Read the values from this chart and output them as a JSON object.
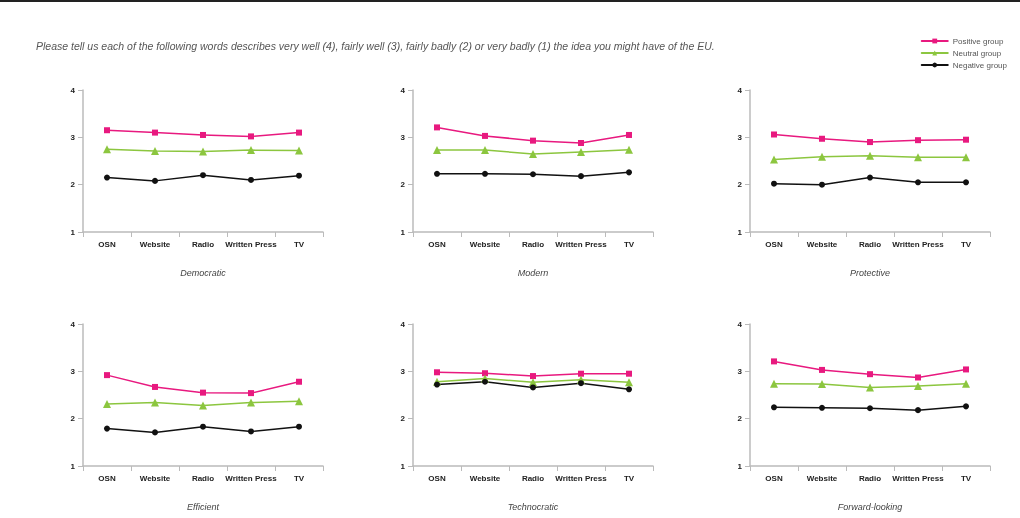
{
  "chart_data": [
    {
      "type": "line",
      "title": "Please tell us each of the following words describes very well (4), fairly well (3), fairly badly (2) or very badly (1) the idea you might have of the EU.",
      "xlabel": "Democratic",
      "categories": [
        "OSN",
        "Website",
        "Radio",
        "Written Press",
        "TV"
      ],
      "ylim": [
        1,
        4
      ],
      "yticks": [
        1,
        2,
        3,
        4
      ],
      "legend": false,
      "line_style": "solid",
      "series": [
        {
          "color": "#e8197f",
          "marker": "square",
          "values": [
            3.15,
            3.1,
            3.05,
            3.02,
            3.1
          ]
        },
        {
          "color": "#8cc63f",
          "marker": "triangle",
          "values": [
            2.75,
            2.71,
            2.7,
            2.73,
            2.72
          ]
        },
        {
          "color": "#111111",
          "marker": "circle",
          "values": [
            2.15,
            2.08,
            2.2,
            2.1,
            2.19
          ]
        }
      ]
    },
    {
      "type": "line",
      "xlabel": "Modern",
      "categories": [
        "OSN",
        "Website",
        "Radio",
        "Written Press",
        "TV"
      ],
      "ylim": [
        1,
        4
      ],
      "yticks": [
        1,
        2,
        3,
        4
      ],
      "legend": false,
      "line_style": "solid",
      "series": [
        {
          "color": "#e8197f",
          "marker": "square",
          "values": [
            3.21,
            3.03,
            2.93,
            2.88,
            3.05
          ]
        },
        {
          "color": "#8cc63f",
          "marker": "triangle",
          "values": [
            2.73,
            2.73,
            2.65,
            2.69,
            2.74
          ]
        },
        {
          "color": "#111111",
          "marker": "circle",
          "values": [
            2.23,
            2.23,
            2.22,
            2.18,
            2.26
          ]
        }
      ]
    },
    {
      "type": "line",
      "xlabel": "Protective",
      "categories": [
        "OSN",
        "Website",
        "Radio",
        "Written Press",
        "TV"
      ],
      "ylim": [
        1,
        4
      ],
      "yticks": [
        1,
        2,
        3,
        4
      ],
      "legend": "top right",
      "line_style": "solid",
      "series": [
        {
          "name": "Positive group",
          "color": "#e8197f",
          "marker": "square",
          "values": [
            3.06,
            2.97,
            2.9,
            2.94,
            2.95
          ]
        },
        {
          "name": "Neutral group",
          "color": "#8cc63f",
          "marker": "triangle",
          "values": [
            2.53,
            2.59,
            2.61,
            2.58,
            2.58
          ]
        },
        {
          "name": "Negative group",
          "color": "#111111",
          "marker": "circle",
          "values": [
            2.02,
            2.0,
            2.15,
            2.05,
            2.05
          ]
        }
      ]
    },
    {
      "type": "line",
      "xlabel": "Efficient",
      "categories": [
        "OSN",
        "Website",
        "Radio",
        "Written Press",
        "TV"
      ],
      "ylim": [
        1,
        4
      ],
      "yticks": [
        1,
        2,
        3,
        4
      ],
      "legend": false,
      "line_style": "solid",
      "series": [
        {
          "color": "#e8197f",
          "marker": "square",
          "values": [
            2.92,
            2.67,
            2.55,
            2.54,
            2.78
          ]
        },
        {
          "color": "#8cc63f",
          "marker": "triangle",
          "values": [
            2.31,
            2.34,
            2.28,
            2.34,
            2.37
          ]
        },
        {
          "color": "#111111",
          "marker": "circle",
          "values": [
            1.79,
            1.71,
            1.83,
            1.73,
            1.83
          ]
        }
      ]
    },
    {
      "type": "line",
      "xlabel": "Technocratic",
      "categories": [
        "OSN",
        "Website",
        "Radio",
        "Written Press",
        "TV"
      ],
      "ylim": [
        1,
        4
      ],
      "yticks": [
        1,
        2,
        3,
        4
      ],
      "legend": false,
      "line_style": "solid",
      "series": [
        {
          "color": "#e8197f",
          "marker": "square",
          "values": [
            2.98,
            2.96,
            2.9,
            2.95,
            2.95
          ]
        },
        {
          "color": "#8cc63f",
          "marker": "triangle",
          "values": [
            2.78,
            2.85,
            2.77,
            2.82,
            2.77
          ]
        },
        {
          "color": "#111111",
          "marker": "circle",
          "values": [
            2.72,
            2.78,
            2.66,
            2.75,
            2.62
          ]
        }
      ]
    },
    {
      "type": "line",
      "xlabel": "Forward-looking",
      "categories": [
        "OSN",
        "Website",
        "Radio",
        "Written Press",
        "TV"
      ],
      "ylim": [
        1,
        4
      ],
      "yticks": [
        1,
        2,
        3,
        4
      ],
      "legend": false,
      "line_style": "solid",
      "series": [
        {
          "color": "#e8197f",
          "marker": "square",
          "values": [
            3.21,
            3.03,
            2.94,
            2.87,
            3.04
          ]
        },
        {
          "color": "#8cc63f",
          "marker": "triangle",
          "values": [
            2.74,
            2.73,
            2.66,
            2.69,
            2.74
          ]
        },
        {
          "color": "#111111",
          "marker": "circle",
          "values": [
            2.24,
            2.23,
            2.22,
            2.18,
            2.26
          ]
        }
      ]
    }
  ]
}
